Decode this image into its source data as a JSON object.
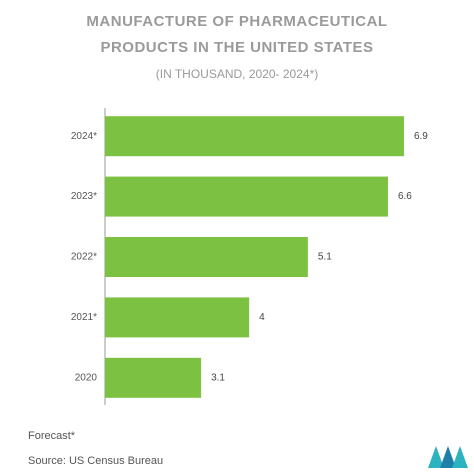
{
  "chart_data": {
    "type": "barh",
    "title": [
      "MANUFACTURE OF PHARMACEUTICAL",
      "PRODUCTS IN THE UNITED STATES"
    ],
    "subtitle": "(IN THOUSAND, 2020- 2024*)",
    "categories": [
      "2024*",
      "2023*",
      "2022*",
      "2021*",
      "2020"
    ],
    "values": [
      6.9,
      6.6,
      5.1,
      4,
      3.1
    ],
    "color": "#7cc142",
    "xlim": [
      1.3,
      7.2
    ],
    "footnote": "Forecast*",
    "source": "Source: US Census Bureau"
  }
}
